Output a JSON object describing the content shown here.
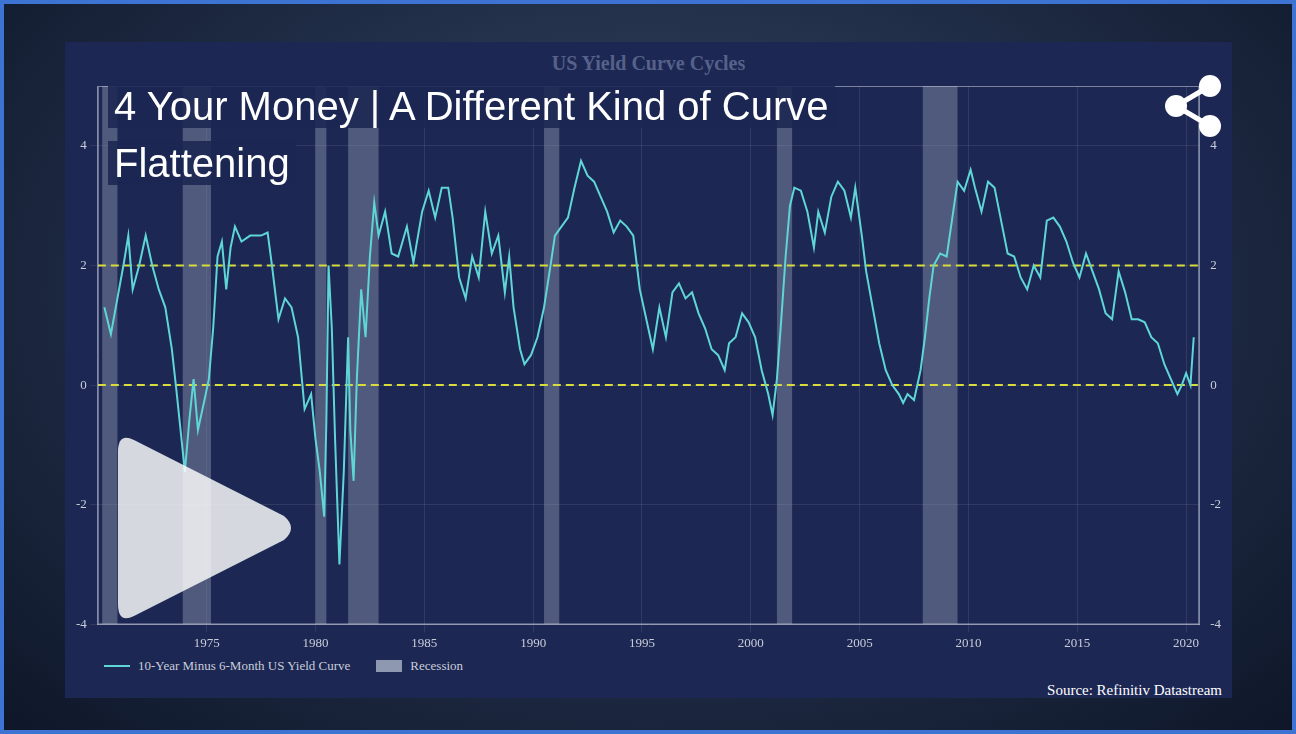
{
  "chart_data": {
    "type": "line",
    "title": "US Yield Curve Cycles",
    "headline": "4 Your Money | A Different Kind of Curve Flattening",
    "source": "Source: Refinitiv Datastream",
    "x": [
      1970.3,
      1970.6,
      1970.9,
      1971.2,
      1971.4,
      1971.6,
      1971.9,
      1972.2,
      1972.5,
      1972.8,
      1973.1,
      1973.4,
      1973.6,
      1973.8,
      1974.0,
      1974.2,
      1974.4,
      1974.6,
      1974.9,
      1975.1,
      1975.3,
      1975.5,
      1975.7,
      1975.9,
      1976.1,
      1976.3,
      1976.6,
      1977.0,
      1977.5,
      1977.8,
      1978.0,
      1978.3,
      1978.6,
      1978.9,
      1979.2,
      1979.5,
      1979.8,
      1980.0,
      1980.2,
      1980.4,
      1980.5,
      1980.6,
      1980.75,
      1980.9,
      1981.0,
      1981.1,
      1981.3,
      1981.5,
      1981.6,
      1981.75,
      1981.9,
      1982.1,
      1982.3,
      1982.5,
      1982.7,
      1982.9,
      1983.2,
      1983.5,
      1983.8,
      1984.2,
      1984.5,
      1984.9,
      1985.2,
      1985.5,
      1985.8,
      1986.1,
      1986.3,
      1986.6,
      1986.9,
      1987.2,
      1987.5,
      1987.8,
      1988.1,
      1988.4,
      1988.7,
      1988.9,
      1989.1,
      1989.4,
      1989.6,
      1989.9,
      1990.2,
      1990.5,
      1990.8,
      1991.0,
      1991.3,
      1991.6,
      1991.9,
      1992.2,
      1992.5,
      1992.8,
      1993.1,
      1993.4,
      1993.7,
      1994.0,
      1994.3,
      1994.6,
      1994.9,
      1995.2,
      1995.5,
      1995.8,
      1996.1,
      1996.4,
      1996.7,
      1997.0,
      1997.3,
      1997.6,
      1997.9,
      1998.2,
      1998.5,
      1998.8,
      1999.0,
      1999.3,
      1999.6,
      1999.9,
      2000.2,
      2000.5,
      2000.8,
      2001.0,
      2001.2,
      2001.4,
      2001.6,
      2001.8,
      2002.0,
      2002.3,
      2002.6,
      2002.9,
      2003.1,
      2003.4,
      2003.7,
      2004.0,
      2004.3,
      2004.6,
      2004.8,
      2005.1,
      2005.3,
      2005.6,
      2005.9,
      2006.2,
      2006.5,
      2006.8,
      2007.0,
      2007.2,
      2007.5,
      2007.8,
      2008.0,
      2008.2,
      2008.4,
      2008.7,
      2009.0,
      2009.3,
      2009.5,
      2009.8,
      2010.1,
      2010.3,
      2010.6,
      2010.9,
      2011.2,
      2011.5,
      2011.8,
      2012.1,
      2012.4,
      2012.7,
      2013.0,
      2013.3,
      2013.6,
      2013.9,
      2014.2,
      2014.5,
      2014.8,
      2015.1,
      2015.4,
      2015.7,
      2016.0,
      2016.3,
      2016.6,
      2016.9,
      2017.2,
      2017.5,
      2017.8,
      2018.1,
      2018.4,
      2018.7,
      2019.0,
      2019.3,
      2019.6,
      2019.8,
      2020.0,
      2020.2,
      2020.35
    ],
    "series": [
      {
        "name": "10-Year Minus 6-Month US Yield Curve",
        "color": "#5fd6d6",
        "values": [
          1.3,
          0.85,
          1.45,
          2.05,
          2.5,
          1.6,
          2.0,
          2.5,
          2.0,
          1.6,
          1.3,
          0.6,
          -0.05,
          -0.75,
          -1.45,
          -0.6,
          0.1,
          -0.75,
          -0.25,
          0.1,
          0.95,
          2.15,
          2.4,
          1.6,
          2.3,
          2.65,
          2.4,
          2.5,
          2.5,
          2.55,
          2.0,
          1.1,
          1.45,
          1.3,
          0.8,
          -0.4,
          -0.15,
          -0.9,
          -1.45,
          -2.2,
          -0.6,
          2.0,
          0.95,
          -0.9,
          -1.95,
          -3.0,
          -1.45,
          0.8,
          -0.75,
          -1.6,
          0.1,
          1.6,
          0.8,
          2.15,
          3.05,
          2.5,
          2.9,
          2.2,
          2.15,
          2.65,
          2.05,
          2.9,
          3.25,
          2.8,
          3.3,
          3.3,
          2.8,
          1.8,
          1.45,
          2.15,
          1.8,
          2.9,
          2.2,
          2.5,
          1.55,
          2.15,
          1.3,
          0.6,
          0.35,
          0.5,
          0.8,
          1.3,
          2.0,
          2.5,
          2.65,
          2.8,
          3.3,
          3.75,
          3.5,
          3.4,
          3.15,
          2.9,
          2.55,
          2.75,
          2.65,
          2.5,
          1.6,
          1.1,
          0.6,
          1.3,
          0.8,
          1.55,
          1.7,
          1.45,
          1.55,
          1.2,
          0.95,
          0.6,
          0.5,
          0.25,
          0.7,
          0.8,
          1.2,
          1.05,
          0.8,
          0.25,
          -0.15,
          -0.5,
          0.1,
          1.1,
          2.15,
          3.0,
          3.3,
          3.25,
          2.9,
          2.3,
          2.9,
          2.55,
          3.15,
          3.4,
          3.25,
          2.8,
          3.3,
          2.5,
          1.9,
          1.3,
          0.7,
          0.25,
          0.0,
          -0.15,
          -0.3,
          -0.15,
          -0.25,
          0.25,
          0.8,
          1.45,
          2.0,
          2.2,
          2.15,
          2.9,
          3.4,
          3.25,
          3.6,
          3.3,
          2.9,
          3.4,
          3.3,
          2.75,
          2.2,
          2.15,
          1.8,
          1.6,
          2.0,
          1.8,
          2.75,
          2.8,
          2.65,
          2.4,
          2.05,
          1.8,
          2.2,
          1.9,
          1.6,
          1.2,
          1.1,
          1.9,
          1.55,
          1.1,
          1.1,
          1.05,
          0.8,
          0.7,
          0.35,
          0.1,
          -0.15,
          0.0,
          0.2,
          0.0,
          0.8
        ]
      }
    ],
    "recessions": {
      "name": "Recession",
      "color": "#8e98b0",
      "ranges": [
        [
          1970.2,
          1970.9
        ],
        [
          1973.9,
          1975.2
        ],
        [
          1980.0,
          1980.5
        ],
        [
          1981.5,
          1982.9
        ],
        [
          1990.5,
          1991.2
        ],
        [
          2001.2,
          2001.9
        ],
        [
          2007.9,
          2009.5
        ]
      ]
    },
    "hlines": {
      "values": [
        0,
        2
      ],
      "color": "#d8dc3c",
      "line_style": "dashed"
    },
    "xlim": [
      1970,
      2020.6
    ],
    "xticks": [
      1975,
      1980,
      1985,
      1990,
      1995,
      2000,
      2005,
      2010,
      2015,
      2020
    ],
    "ylim": [
      -4,
      5
    ],
    "yticks": [
      -4,
      -2,
      0,
      2,
      4
    ],
    "y2lim": [
      -4,
      5
    ],
    "y2ticks": [
      -4,
      -2,
      0,
      2,
      4
    ],
    "grid": true,
    "legend": "bottom"
  }
}
